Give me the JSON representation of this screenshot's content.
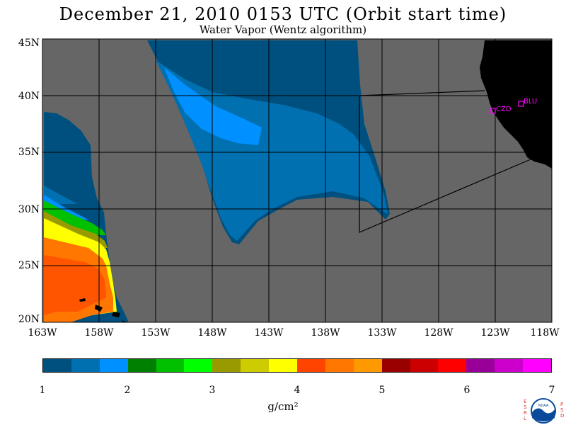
{
  "title": "December 21, 2010  0153 UTC  (Orbit start time)",
  "subtitle": "Water Vapor (Wentz algorithm)",
  "lat_labels": [
    "45N",
    "40N",
    "35N",
    "30N",
    "25N",
    "20N"
  ],
  "lon_labels": [
    "163W",
    "158W",
    "153W",
    "148W",
    "143W",
    "138W",
    "133W",
    "128W",
    "123W",
    "118W"
  ],
  "stations": [
    {
      "code": "CZD",
      "lat": 38.6,
      "lon": 123.2
    },
    {
      "code": "BLU",
      "lat": 39.3,
      "lon": 120.8
    }
  ],
  "colorbar": {
    "colors": [
      "#00507f",
      "#0070b0",
      "#0090ff",
      "#008000",
      "#00c000",
      "#00ff00",
      "#999900",
      "#cccc00",
      "#ffff00",
      "#ff4400",
      "#ff7700",
      "#ff9900",
      "#990000",
      "#cc0000",
      "#ff0000",
      "#990099",
      "#cc00cc",
      "#ff00ff"
    ],
    "tick_labels": [
      "1",
      "2",
      "3",
      "4",
      "5",
      "6",
      "7"
    ],
    "unit": "g/cm²"
  },
  "logo_left": "ESRL",
  "logo_right": "PSD",
  "logo_center": "NOAA"
}
